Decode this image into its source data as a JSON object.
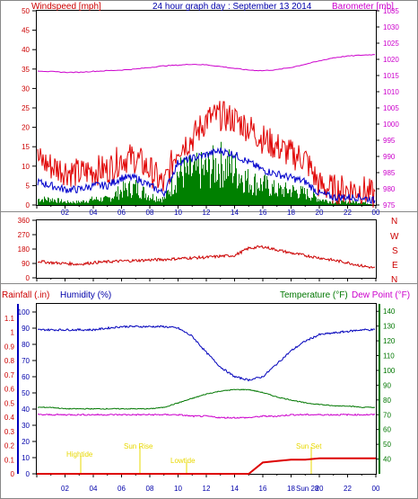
{
  "header": {
    "title": "24 hour graph day : September 13 2014",
    "wind_label": "Windspeed [mph]",
    "baro_label": "Barometer [mb]"
  },
  "direction": {
    "compass": [
      "N",
      "W",
      "S",
      "E",
      "N"
    ]
  },
  "lower_header": {
    "rain_label": "Rainfall (.in)",
    "hum_label": "Humidity (%)",
    "temp_label": "Temperature (°F)",
    "dew_label": "Dew Point (°F)"
  },
  "events": {
    "high": "Hightide",
    "sunrise": "Sun Rise",
    "low": "Lowtide",
    "sunset": "Sun Set",
    "time_label": "Sun 28"
  },
  "colors": {
    "wind": "#e00000",
    "wind_avg": "#0000cc",
    "gust": "#008000",
    "baro": "#cc00cc",
    "direction": "#cc0000",
    "humidity": "#0000bb",
    "temperature": "#007700",
    "dewpoint": "#cc00cc",
    "rain": "#dd0000",
    "event": "#e8d800"
  },
  "chart_data": [
    {
      "type": "line",
      "title": "24 hour graph day : September 13 2014",
      "x_ticks": [
        "02",
        "04",
        "06",
        "08",
        "10",
        "12",
        "14",
        "16",
        "18",
        "20",
        "22",
        "00"
      ],
      "x_hours": [
        0,
        1,
        2,
        3,
        4,
        5,
        6,
        7,
        8,
        9,
        10,
        11,
        12,
        13,
        14,
        15,
        16,
        17,
        18,
        19,
        20,
        21,
        22,
        23,
        24
      ],
      "y_left": {
        "label": "Windspeed [mph]",
        "range": [
          0,
          50
        ],
        "ticks": [
          "0",
          "5",
          "10",
          "15",
          "20",
          "25",
          "30",
          "35",
          "40",
          "45",
          "50"
        ]
      },
      "y_right": {
        "label": "Barometer [mb]",
        "range": [
          975,
          1035
        ],
        "ticks": [
          "975",
          "980",
          "985",
          "990",
          "995",
          "1000",
          "1005",
          "1010",
          "1015",
          "1020",
          "1025",
          "1030",
          "1035"
        ]
      },
      "series": [
        {
          "name": "Windspeed [mph]",
          "values": [
            12,
            10,
            9,
            8,
            9,
            9,
            12,
            12,
            9,
            5,
            15,
            17,
            22,
            23,
            22,
            20,
            17,
            15,
            13,
            12,
            5,
            4,
            4,
            4,
            2
          ]
        },
        {
          "name": "",
          "values": [
            6,
            5,
            4,
            4,
            5,
            5,
            7,
            7,
            5,
            3,
            11,
            12,
            13,
            14,
            13,
            11,
            9,
            8,
            7,
            6,
            3,
            2,
            2,
            2,
            1
          ]
        },
        {
          "name": "",
          "values": [
            2,
            2,
            1,
            1,
            2,
            2,
            5,
            6,
            3,
            2,
            11,
            11,
            12,
            14,
            12,
            8,
            7,
            5,
            5,
            4,
            2,
            1,
            1,
            1,
            0
          ]
        },
        {
          "name": "Barometer [mb]",
          "values": [
            1016.5,
            1016.2,
            1016.0,
            1016.0,
            1016.3,
            1016.5,
            1016.7,
            1017.0,
            1017.5,
            1018.0,
            1018.2,
            1018.5,
            1018.3,
            1017.8,
            1017.2,
            1016.7,
            1016.5,
            1016.8,
            1017.5,
            1018.5,
            1019.5,
            1020.5,
            1021.0,
            1021.3,
            1021.5
          ]
        }
      ]
    },
    {
      "type": "line",
      "y_left": {
        "range": [
          0,
          360
        ],
        "ticks": [
          "0",
          "90",
          "180",
          "270",
          "360"
        ]
      },
      "series": [
        {
          "name": "",
          "values": [
            105,
            95,
            90,
            85,
            95,
            100,
            105,
            108,
            112,
            115,
            120,
            125,
            128,
            135,
            140,
            185,
            195,
            175,
            155,
            140,
            125,
            110,
            95,
            75,
            60
          ]
        }
      ]
    },
    {
      "type": "line",
      "y_rain": {
        "label": "Rainfall (.in)",
        "range": [
          0,
          1.2
        ],
        "ticks": [
          "0",
          "0.1",
          "0.2",
          "0.3",
          "0.4",
          "0.5",
          "0.6",
          "0.7",
          "0.8",
          "0.9",
          "1",
          "1.1"
        ]
      },
      "y_humidity": {
        "label": "Humidity (%)",
        "range": [
          0,
          105
        ],
        "ticks": [
          "0",
          "10",
          "20",
          "30",
          "40",
          "50",
          "60",
          "70",
          "80",
          "90",
          "100"
        ]
      },
      "y_temp": {
        "label": "Temperature (°F)",
        "range": [
          30,
          145
        ],
        "ticks": [
          "40",
          "50",
          "60",
          "70",
          "80",
          "90",
          "100",
          "110",
          "120",
          "130",
          "140"
        ]
      },
      "series": [
        {
          "name": "Humidity (%)",
          "values": [
            89,
            89,
            89,
            89,
            89,
            90,
            91,
            91,
            91,
            91,
            90,
            85,
            75,
            66,
            60,
            58,
            60,
            68,
            76,
            82,
            86,
            87,
            88,
            89,
            89
          ]
        },
        {
          "name": "Temperature (°F)",
          "values": [
            75,
            75,
            74,
            74,
            74,
            74,
            74,
            74,
            74,
            75,
            78,
            81,
            84,
            86,
            87,
            87,
            85,
            82,
            80,
            78,
            77,
            76,
            76,
            75,
            75
          ]
        },
        {
          "name": "Dew Point (°F)",
          "values": [
            70,
            70,
            70,
            70,
            70,
            70,
            70,
            70,
            70,
            70,
            70,
            69,
            69,
            68,
            68,
            68,
            69,
            69,
            70,
            70,
            70,
            70,
            70,
            70,
            70
          ]
        },
        {
          "name": "Rainfall (.in)",
          "values": [
            0,
            0,
            0,
            0,
            0,
            0,
            0,
            0,
            0,
            0,
            0,
            0,
            0,
            0,
            0,
            0,
            0.08,
            0.09,
            0.1,
            0.1,
            0.11,
            0.11,
            0.11,
            0.11,
            0.11
          ]
        }
      ]
    }
  ]
}
